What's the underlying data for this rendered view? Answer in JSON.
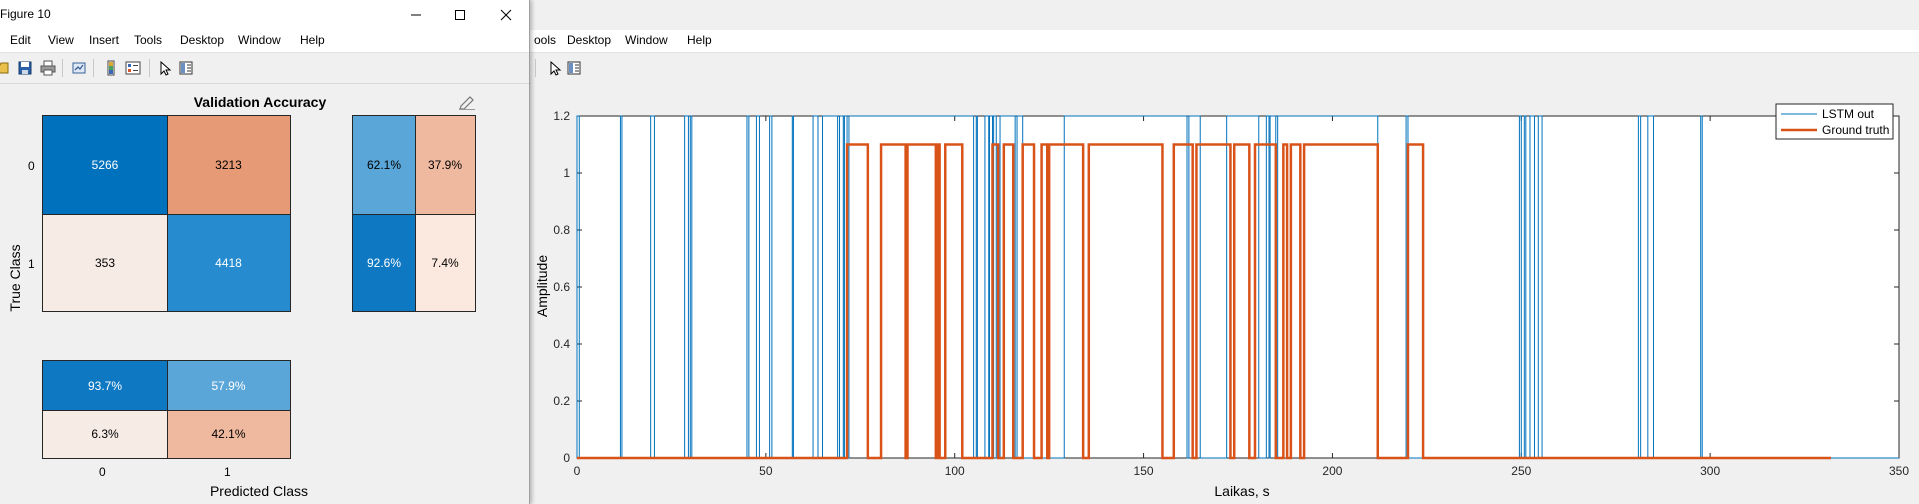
{
  "window": {
    "title": "Figure 10",
    "menu": [
      "Edit",
      "View",
      "Insert",
      "Tools",
      "Desktop",
      "Window",
      "Help"
    ]
  },
  "back_window": {
    "menu": [
      "ools",
      "Desktop",
      "Window",
      "Help"
    ]
  },
  "confusion_chart": {
    "title": "Validation Accuracy",
    "ylabel": "True Class",
    "xlabel": "Predicted Class",
    "row_labels": [
      "0",
      "1"
    ],
    "col_labels": [
      "0",
      "1"
    ],
    "matrix": [
      [
        "5266",
        "3213"
      ],
      [
        "353",
        "4418"
      ]
    ],
    "row_summary": [
      [
        "62.1%",
        "37.9%"
      ],
      [
        "92.6%",
        "7.4%"
      ]
    ],
    "col_summary": [
      [
        "93.7%",
        "57.9%"
      ],
      [
        "6.3%",
        "42.1%"
      ]
    ],
    "colors": {
      "dark_blue": "#0072bd",
      "mid_blue": "#268ccf",
      "light_blue": "#5ba6d8",
      "orange": "#e69a75",
      "light_orange": "#efb9a0",
      "pale": "#f6ebe5",
      "pale2": "#fbe9df"
    }
  },
  "chart_data": {
    "type": "line",
    "title": "",
    "xlabel": "Laikas, s",
    "ylabel": "Amplitude",
    "xlim": [
      0,
      350
    ],
    "ylim": [
      0,
      1.2
    ],
    "xticks": [
      "0",
      "50",
      "100",
      "150",
      "200",
      "250",
      "300",
      "350"
    ],
    "yticks": [
      "0",
      "0.2",
      "0.4",
      "0.6",
      "0.8",
      "1",
      "1.2"
    ],
    "legend_location": "top-right",
    "grid": false,
    "series": [
      {
        "name": "LSTM out",
        "color": "#0072bd",
        "high": 1.2,
        "on_intervals": [
          [
            0,
            0.6
          ],
          [
            11.5,
            11.9
          ],
          [
            19.5,
            20.5
          ],
          [
            28.5,
            29.5
          ],
          [
            30,
            30.4
          ],
          [
            45,
            45.5
          ],
          [
            47.5,
            48.3
          ],
          [
            51,
            51.6
          ],
          [
            57,
            57.3
          ],
          [
            62.5,
            63.8
          ],
          [
            65,
            69
          ],
          [
            69.5,
            70.5
          ],
          [
            70.8,
            71.5
          ],
          [
            72,
            105
          ],
          [
            105.7,
            106
          ],
          [
            108,
            109
          ],
          [
            109.2,
            110
          ],
          [
            110.3,
            111
          ],
          [
            112,
            116
          ],
          [
            116.5,
            118
          ],
          [
            129,
            161.5
          ],
          [
            162,
            165
          ],
          [
            172,
            180.5
          ],
          [
            182.5,
            183.2
          ],
          [
            183.5,
            185
          ],
          [
            185.5,
            212
          ],
          [
            219.5,
            220
          ],
          [
            249.5,
            250
          ],
          [
            250.8,
            251.2
          ],
          [
            252.3,
            253.5
          ],
          [
            254.5,
            255.5
          ],
          [
            281,
            281.6
          ],
          [
            283.5,
            285
          ],
          [
            297.5,
            297.9
          ]
        ]
      },
      {
        "name": "Ground truth",
        "color": "#d95319",
        "high": 1.1,
        "on_intervals": [
          [
            71.5,
            77
          ],
          [
            80.5,
            87
          ],
          [
            87.5,
            95
          ],
          [
            95.5,
            96
          ],
          [
            97.5,
            102
          ],
          [
            110,
            111.5
          ],
          [
            113,
            115.5
          ],
          [
            118,
            121
          ],
          [
            123,
            124.5
          ],
          [
            125,
            134
          ],
          [
            135.5,
            155
          ],
          [
            158,
            163
          ],
          [
            164,
            173
          ],
          [
            174,
            178
          ],
          [
            179.5,
            185
          ],
          [
            187,
            188
          ],
          [
            189,
            191.5
          ],
          [
            192.5,
            212
          ],
          [
            220,
            224
          ]
        ],
        "end": 332
      }
    ]
  }
}
